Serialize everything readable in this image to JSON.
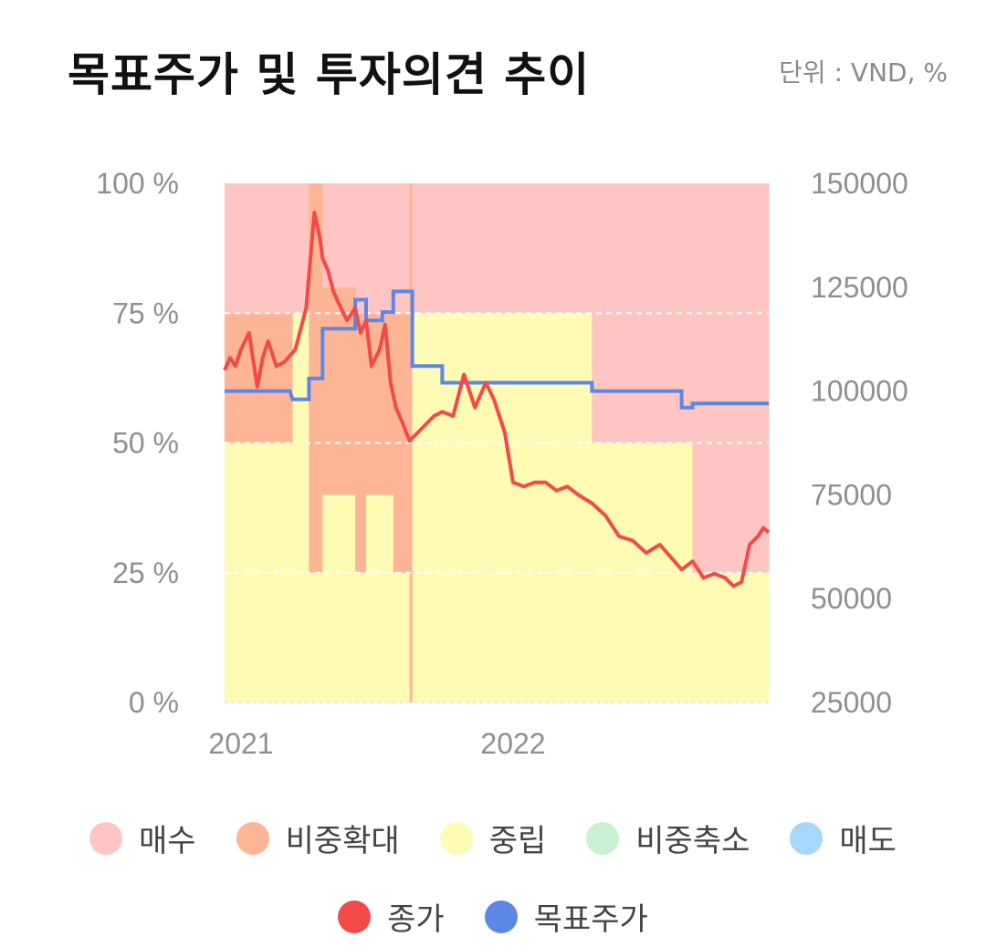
{
  "header": {
    "title": "목표주가 및 투자의견 추이",
    "unit": "단위 : VND, %"
  },
  "chart_data": {
    "type": "area",
    "y_left": {
      "ticks": [
        "100 %",
        "75 %",
        "50 %",
        "25 %",
        "0 %"
      ],
      "range": [
        0,
        100
      ]
    },
    "y_right": {
      "ticks": [
        "150000",
        "125000",
        "100000",
        "75000",
        "50000",
        "25000"
      ],
      "range": [
        25000,
        150000
      ]
    },
    "x": {
      "ticks": [
        "2021",
        "2022"
      ],
      "range": [
        2021.0,
        2023.0
      ],
      "tick_values": [
        2021.0,
        2022.0
      ]
    },
    "opinion_ratios": [
      {
        "start": 2021.0,
        "end": 2021.25,
        "buy": 25,
        "overweight": 25,
        "neutral": 50
      },
      {
        "start": 2021.25,
        "end": 2021.31,
        "buy": 25,
        "overweight": 0,
        "neutral": 75
      },
      {
        "start": 2021.31,
        "end": 2021.36,
        "buy": 0,
        "overweight": 75,
        "neutral": 25
      },
      {
        "start": 2021.36,
        "end": 2021.48,
        "buy": 20,
        "overweight": 40,
        "neutral": 40
      },
      {
        "start": 2021.48,
        "end": 2021.52,
        "buy": 25,
        "overweight": 50,
        "neutral": 25
      },
      {
        "start": 2021.52,
        "end": 2021.62,
        "buy": 25,
        "overweight": 35,
        "neutral": 40
      },
      {
        "start": 2021.62,
        "end": 2021.68,
        "buy": 25,
        "overweight": 50,
        "neutral": 25
      },
      {
        "start": 2021.68,
        "end": 2021.69,
        "buy": 0,
        "overweight": 100,
        "neutral": 0
      },
      {
        "start": 2021.69,
        "end": 2021.8,
        "buy": 25,
        "overweight": 0,
        "neutral": 75
      },
      {
        "start": 2021.8,
        "end": 2022.35,
        "buy": 25,
        "overweight": 0,
        "neutral": 75
      },
      {
        "start": 2022.35,
        "end": 2022.72,
        "buy": 50,
        "overweight": 0,
        "neutral": 50
      },
      {
        "start": 2022.72,
        "end": 2023.0,
        "buy": 75,
        "overweight": 0,
        "neutral": 25
      }
    ],
    "series": [
      {
        "name": "종가",
        "x": [
          2021.0,
          2021.02,
          2021.04,
          2021.06,
          2021.09,
          2021.12,
          2021.14,
          2021.16,
          2021.19,
          2021.22,
          2021.26,
          2021.3,
          2021.33,
          2021.35,
          2021.36,
          2021.38,
          2021.4,
          2021.42,
          2021.45,
          2021.48,
          2021.5,
          2021.52,
          2021.54,
          2021.57,
          2021.59,
          2021.61,
          2021.63,
          2021.65,
          2021.68,
          2021.71,
          2021.74,
          2021.77,
          2021.8,
          2021.84,
          2021.88,
          2021.92,
          2021.96,
          2021.99,
          2022.03,
          2022.06,
          2022.1,
          2022.14,
          2022.18,
          2022.22,
          2022.26,
          2022.3,
          2022.35,
          2022.4,
          2022.45,
          2022.5,
          2022.55,
          2022.6,
          2022.64,
          2022.68,
          2022.72,
          2022.76,
          2022.8,
          2022.84,
          2022.87,
          2022.9,
          2022.93,
          2022.96,
          2022.98,
          2023.0
        ],
        "values": [
          105000,
          108000,
          106000,
          110000,
          114000,
          101000,
          108000,
          112000,
          106000,
          107000,
          110000,
          120000,
          143000,
          137000,
          132000,
          129000,
          124000,
          121000,
          117000,
          120000,
          114000,
          117000,
          106000,
          110000,
          116000,
          102000,
          96000,
          93000,
          88000,
          90000,
          92000,
          94000,
          95000,
          94000,
          104000,
          96000,
          102000,
          98000,
          90000,
          78000,
          77000,
          78000,
          78000,
          76000,
          77000,
          75000,
          73000,
          70000,
          65000,
          64000,
          61000,
          63000,
          60000,
          57000,
          59000,
          55000,
          56000,
          55000,
          53000,
          54000,
          63000,
          65000,
          67000,
          66000
        ]
      },
      {
        "name": "목표주가",
        "x": [
          2021.0,
          2021.24,
          2021.25,
          2021.31,
          2021.31,
          2021.36,
          2021.36,
          2021.48,
          2021.48,
          2021.52,
          2021.52,
          2021.58,
          2021.58,
          2021.62,
          2021.62,
          2021.69,
          2021.69,
          2021.8,
          2021.8,
          2021.88,
          2021.88,
          2022.35,
          2022.35,
          2022.68,
          2022.68,
          2022.72,
          2022.72,
          2023.0
        ],
        "values": [
          100000,
          100000,
          98000,
          98000,
          103000,
          103000,
          115000,
          115000,
          122000,
          122000,
          117000,
          117000,
          119000,
          119000,
          124000,
          124000,
          106000,
          106000,
          102000,
          102000,
          102000,
          102000,
          100000,
          100000,
          96000,
          96000,
          97000,
          97000
        ]
      }
    ]
  },
  "colors": {
    "buy": "#fec5c3",
    "overweight": "#fdb595",
    "neutral": "#fffab4",
    "underweight": "#c9f1d2",
    "sell": "#a6d7fd",
    "close": "#f44a47",
    "target": "#5b88e7",
    "grid": "#ffffff"
  },
  "legend": {
    "row1": [
      {
        "label": "매수",
        "color": "#fec5c3"
      },
      {
        "label": "비중확대",
        "color": "#fdb595"
      },
      {
        "label": "중립",
        "color": "#fffab4"
      },
      {
        "label": "비중축소",
        "color": "#c9f1d2"
      },
      {
        "label": "매도",
        "color": "#a6d7fd"
      }
    ],
    "row2": [
      {
        "label": "종가",
        "color": "#f44a47"
      },
      {
        "label": "목표주가",
        "color": "#5b88e7"
      }
    ]
  }
}
